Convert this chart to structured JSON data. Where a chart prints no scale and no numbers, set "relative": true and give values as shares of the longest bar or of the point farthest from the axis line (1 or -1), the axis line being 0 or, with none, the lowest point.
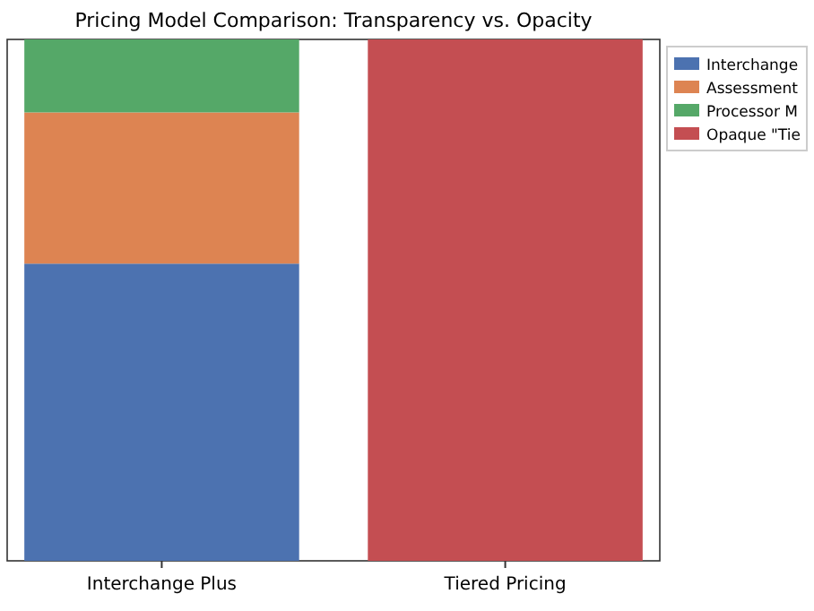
{
  "chart_data": {
    "type": "bar",
    "title": "Pricing Model Comparison: Transparency vs. Opacity",
    "categories": [
      "Interchange Plus",
      "Tiered Pricing"
    ],
    "stacked": true,
    "relative": true,
    "legend": "right",
    "series": [
      {
        "name": "Interchange",
        "color": "#4c72b0",
        "values": [
          0.57,
          null
        ]
      },
      {
        "name": "Assessment",
        "color": "#dd8452",
        "values": [
          0.29,
          null
        ]
      },
      {
        "name": "Processor M",
        "color": "#55a868",
        "values": [
          0.14,
          null
        ]
      },
      {
        "name": "Opaque \"Tie",
        "color": "#c44e52",
        "values": [
          null,
          1
        ]
      }
    ]
  }
}
